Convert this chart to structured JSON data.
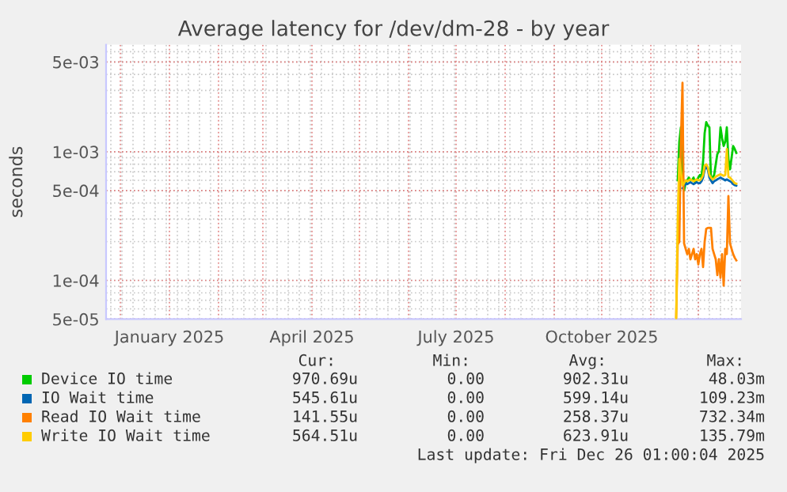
{
  "chart_data": {
    "type": "line",
    "title": "Average latency for /dev/dm-28 - by year",
    "ylabel": "seconds",
    "x": [
      "2025-11-17",
      "2025-11-18",
      "2025-11-19",
      "2025-11-20",
      "2025-11-21",
      "2025-11-22",
      "2025-11-23",
      "2025-11-24",
      "2025-11-25",
      "2025-11-26",
      "2025-11-27",
      "2025-11-28",
      "2025-11-29",
      "2025-11-30",
      "2025-12-01",
      "2025-12-02",
      "2025-12-03",
      "2025-12-04",
      "2025-12-05",
      "2025-12-06",
      "2025-12-07",
      "2025-12-08",
      "2025-12-09",
      "2025-12-10",
      "2025-12-11",
      "2025-12-12",
      "2025-12-13",
      "2025-12-14",
      "2025-12-15",
      "2025-12-16",
      "2025-12-17",
      "2025-12-18",
      "2025-12-19",
      "2025-12-20",
      "2025-12-21",
      "2025-12-22",
      "2025-12-23",
      "2025-12-24",
      "2025-12-25"
    ],
    "series": [
      {
        "name": "Device IO time",
        "color": "#00cc00",
        "values": [
          null,
          0.0006,
          0.0012,
          0.00155,
          0.0007,
          0.0005,
          0.000573,
          0.0006,
          0.00063,
          0.0006,
          0.0006,
          0.00063,
          0.000573,
          0.0006,
          0.00063,
          0.00066,
          0.00063,
          0.00084,
          0.0014,
          0.0017,
          0.0016,
          0.00155,
          0.0006,
          0.00063,
          0.00066,
          0.0008,
          0.00096,
          0.00101,
          0.00155,
          0.00128,
          0.00111,
          0.0012,
          0.00155,
          0.00088,
          0.00073,
          0.0009,
          0.00111,
          0.00105,
          0.00098
        ]
      },
      {
        "name": "IO Wait time",
        "color": "#0066b3",
        "values": [
          null,
          null,
          null,
          null,
          0.00052,
          0.00054,
          0.00057,
          0.00056,
          0.00057,
          0.00058,
          0.00057,
          0.00056,
          0.00057,
          0.00058,
          0.00057,
          0.00057,
          0.00059,
          0.00063,
          0.00073,
          0.00076,
          0.00073,
          0.00063,
          0.0006,
          0.00057,
          0.00059,
          0.0006,
          0.00061,
          0.00062,
          0.00063,
          0.00062,
          0.00061,
          0.0006,
          0.00061,
          0.0006,
          0.00059,
          0.00058,
          0.00056,
          0.00055,
          0.000546
        ]
      },
      {
        "name": "Read IO Wait time",
        "color": "#ff8000",
        "values": [
          5.2e-05,
          0.00019,
          0.0002,
          0.0012,
          0.00344,
          0.000194,
          0.000176,
          0.00016,
          0.000176,
          0.000146,
          0.00016,
          0.000176,
          0.000146,
          0.00016,
          0.000133,
          0.00016,
          0.000176,
          0.000127,
          0.0002,
          0.000252,
          0.000256,
          0.000256,
          0.000256,
          0.000176,
          0.00016,
          0.000146,
          0.00011,
          0.000146,
          0.000105,
          0.00016,
          9.1e-05,
          0.000176,
          0.00016,
          0.000453,
          0.000194,
          0.000176,
          0.00016,
          0.00015,
          0.000143
        ]
      },
      {
        "name": "Write IO Wait time",
        "color": "#ffcc00",
        "values": [
          5e-05,
          0.0003,
          0.00088,
          0.0007,
          0.00055,
          0.00057,
          0.0006,
          0.00059,
          0.0006,
          0.00061,
          0.0006,
          0.00059,
          0.0006,
          0.00061,
          0.0006,
          0.0006,
          0.00062,
          0.00066,
          0.00078,
          0.0008,
          0.00076,
          0.00066,
          0.00063,
          0.00061,
          0.00062,
          0.00064,
          0.00065,
          0.00066,
          0.00067,
          0.00066,
          0.00065,
          0.00066,
          0.00105,
          0.00064,
          0.00063,
          0.00061,
          0.00059,
          0.00057,
          0.000565
        ]
      }
    ],
    "xlim": [
      "2024-11-22",
      "2025-12-28"
    ],
    "xticks": [
      {
        "value": "2025-01-01",
        "label": "January 2025"
      },
      {
        "value": "2025-04-01",
        "label": "April 2025"
      },
      {
        "value": "2025-07-01",
        "label": "July 2025"
      },
      {
        "value": "2025-10-01",
        "label": "October 2025"
      }
    ],
    "log": "y",
    "ylim": [
      5e-05,
      0.0068
    ],
    "yticks": [
      {
        "value": 5e-05,
        "label": "5e-05"
      },
      {
        "value": 0.0001,
        "label": "1e-04"
      },
      {
        "value": 0.0005,
        "label": "5e-04"
      },
      {
        "value": 0.001,
        "label": "1e-03"
      },
      {
        "value": 0.005,
        "label": "5e-03"
      }
    ],
    "grid": true,
    "legend": "bottom",
    "line_style": "solid",
    "marker": "none",
    "annotations": [
      "Cur:",
      "Min:",
      "Avg:",
      "Max:",
      "970.69u",
      "0.00",
      "902.31u",
      "48.03m",
      "545.61u",
      "0.00",
      "599.14u",
      "109.23m",
      "141.55u",
      "0.00",
      "258.37u",
      "732.34m",
      "564.51u",
      "0.00",
      "623.91u",
      "135.79m",
      "Last update: Fri Dec 26 01:00:04 2025"
    ]
  }
}
